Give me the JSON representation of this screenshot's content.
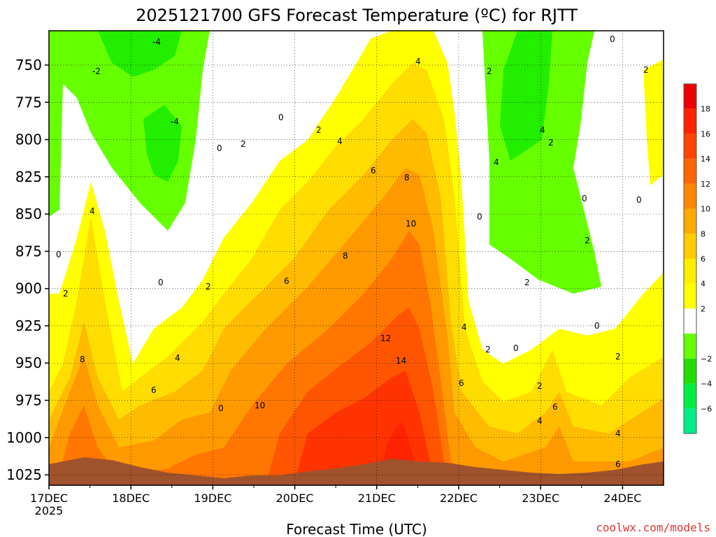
{
  "chart_data": {
    "type": "heatmap",
    "title": "2025121700 GFS Forecast Temperature (ºC) for RJTT",
    "xlabel": "Forecast Time (UTC)",
    "ylabel": "",
    "credit": "coolwx.com/models",
    "x_ticks": [
      "17DEC",
      "18DEC",
      "19DEC",
      "20DEC",
      "21DEC",
      "22DEC",
      "23DEC",
      "24DEC"
    ],
    "x_year": "2025",
    "y_ticks": [
      "750",
      "775",
      "800",
      "825",
      "850",
      "875",
      "900",
      "925",
      "950",
      "975",
      "1000",
      "1025"
    ],
    "xlim": [
      "17DEC 00Z",
      "24DEC 12Z"
    ],
    "ylim": [
      1032,
      727
    ],
    "grid": true,
    "colorbar": {
      "tick_labels": [
        "18",
        "16",
        "14",
        "12",
        "10",
        "8",
        "6",
        "4",
        "2",
        "−2",
        "−4",
        "−6"
      ],
      "levels": [
        -8,
        -6,
        -4,
        -2,
        0,
        2,
        4,
        6,
        8,
        10,
        12,
        14,
        16,
        18,
        20
      ],
      "colors": [
        "#00ee88",
        "#00ee44",
        "#22dd00",
        "#66ff00",
        "#ffffff",
        "#ffff00",
        "#ffee00",
        "#ffcc00",
        "#ffaa00",
        "#ff8800",
        "#ff6600",
        "#ff4400",
        "#ff2200",
        "#ee0000"
      ]
    },
    "ground_color": "#a0522d",
    "series": [
      {
        "name": "",
        "x": [
          "17DEC 00Z",
          "17DEC 12Z",
          "18DEC 00Z",
          "18DEC 12Z",
          "19DEC 00Z",
          "19DEC 12Z",
          "20DEC 00Z",
          "20DEC 12Z",
          "21DEC 00Z",
          "21DEC 12Z",
          "22DEC 00Z",
          "22DEC 12Z",
          "23DEC 00Z",
          "23DEC 12Z",
          "24DEC 00Z",
          "24DEC 12Z"
        ]
      }
    ],
    "temperature_950hPa": [
      4,
      8,
      5,
      5,
      2,
      8,
      11,
      13,
      14,
      15,
      5,
      2,
      2,
      2,
      3,
      4
    ],
    "temperature_850hPa": [
      0,
      4,
      -2,
      -4,
      0,
      2,
      6,
      8,
      10,
      10,
      -2,
      -4,
      -4,
      -2,
      0,
      2
    ],
    "contour_labels": [
      "-4",
      "-2",
      "0",
      "2",
      "4",
      "6",
      "8",
      "10",
      "12",
      "14"
    ]
  }
}
